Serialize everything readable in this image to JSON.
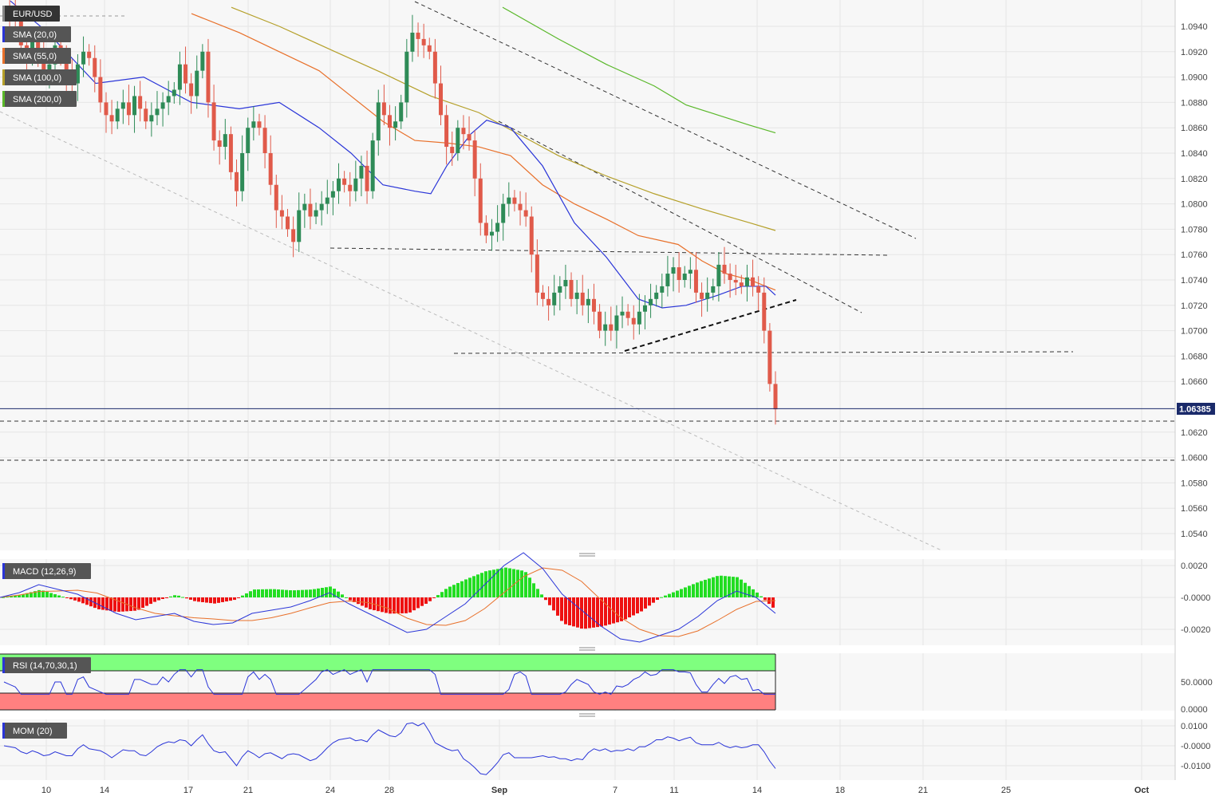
{
  "symbol": "EUR/USD",
  "last_price": 1.06385,
  "last_price_label": "1.06385",
  "colors": {
    "up": "#2e8b57",
    "down": "#e05a4a",
    "sma20": "#2a35d8",
    "sma55": "#e8702a",
    "sma100": "#b5a02a",
    "sma200": "#5ab82a",
    "macd_line": "#2a35d8",
    "signal_line": "#e8702a",
    "hist_pos": "#22dd22",
    "hist_neg": "#ee1111",
    "rsi_line": "#2a35d8",
    "rsi_overbought_zone": "#7fff7f",
    "rsi_oversold_zone": "#ff8080",
    "mom_line": "#2a35d8",
    "last_price_line": "#1a2a6a"
  },
  "indicators": {
    "sma20": "SMA (20,0)",
    "sma55": "SMA (55,0)",
    "sma100": "SMA (100,0)",
    "sma200": "SMA (200,0)",
    "macd": "MACD (12,26,9)",
    "rsi": "RSI (14,70,30,1)",
    "mom": "MOM (20)"
  },
  "chart_data": {
    "type": "candlestick",
    "title": "EUR/USD",
    "ylim": [
      1.053,
      1.096
    ],
    "price_ticks": [
      "1.0940",
      "1.0920",
      "1.0900",
      "1.0880",
      "1.0860",
      "1.0840",
      "1.0820",
      "1.0800",
      "1.0780",
      "1.0760",
      "1.0740",
      "1.0720",
      "1.0700",
      "1.0680",
      "1.0660",
      "1.0620",
      "1.0600",
      "1.0580",
      "1.0560",
      "1.0540"
    ],
    "date_ticks": [
      "10",
      "14",
      "17",
      "21",
      "24",
      "28",
      "Sep",
      "7",
      "11",
      "14",
      "18",
      "21",
      "25",
      "Oct"
    ],
    "macd_ticks": [
      "0.0020",
      "-0.0000",
      "-0.0020"
    ],
    "rsi_ticks": [
      "50.0000",
      "0.0000"
    ],
    "mom_ticks": [
      "0.0100",
      "-0.0000",
      "-0.0100"
    ],
    "closes": [
      1.0955,
      1.095,
      1.0945,
      1.0925,
      1.0915,
      1.093,
      1.092,
      1.0905,
      1.091,
      1.0925,
      1.0915,
      1.09,
      1.0895,
      1.091,
      1.092,
      1.0915,
      1.09,
      1.088,
      1.087,
      1.0865,
      1.0875,
      1.088,
      1.087,
      1.0885,
      1.0875,
      1.0865,
      1.087,
      1.0875,
      1.088,
      1.0885,
      1.089,
      1.091,
      1.0895,
      1.0885,
      1.0905,
      1.092,
      1.088,
      1.085,
      1.0845,
      1.0855,
      1.0825,
      1.081,
      1.084,
      1.086,
      1.0865,
      1.086,
      1.084,
      1.0815,
      1.0795,
      1.079,
      1.078,
      1.077,
      1.0795,
      1.08,
      1.079,
      1.0795,
      1.08,
      1.0805,
      1.081,
      1.082,
      1.0815,
      1.081,
      1.082,
      1.083,
      1.081,
      1.085,
      1.088,
      1.087,
      1.086,
      1.0865,
      1.088,
      1.092,
      1.0935,
      1.093,
      1.0925,
      1.092,
      1.0895,
      1.087,
      1.0845,
      1.084,
      1.086,
      1.0855,
      1.085,
      1.082,
      1.0785,
      1.0775,
      1.0778,
      1.0785,
      1.08,
      1.0805,
      1.08,
      1.0795,
      1.079,
      1.076,
      1.073,
      1.0725,
      1.072,
      1.073,
      1.0735,
      1.074,
      1.0725,
      1.073,
      1.072,
      1.0725,
      1.0715,
      1.07,
      1.0705,
      1.07,
      1.0712,
      1.0715,
      1.071,
      1.0705,
      1.0715,
      1.072,
      1.0725,
      1.073,
      1.0735,
      1.0745,
      1.075,
      1.074,
      1.0745,
      1.0748,
      1.073,
      1.0725,
      1.073,
      1.0735,
      1.0752,
      1.0745,
      1.074,
      1.0738,
      1.0735,
      1.0742,
      1.0735,
      1.073,
      1.07,
      1.0658,
      1.0638
    ],
    "sma20": [
      [
        13,
        1.096
      ],
      [
        60,
        1.0935
      ],
      [
        120,
        1.0895
      ],
      [
        180,
        1.09
      ],
      [
        240,
        1.088
      ],
      [
        300,
        1.0875
      ],
      [
        350,
        1.088
      ],
      [
        400,
        1.086
      ],
      [
        440,
        1.084
      ],
      [
        480,
        1.0815
      ],
      [
        520,
        1.081
      ],
      [
        540,
        1.0808
      ],
      [
        560,
        1.083
      ],
      [
        590,
        1.0855
      ],
      [
        610,
        1.0866
      ],
      [
        640,
        1.086
      ],
      [
        680,
        1.083
      ],
      [
        720,
        1.0785
      ],
      [
        760,
        1.0758
      ],
      [
        800,
        1.0725
      ],
      [
        830,
        1.0718
      ],
      [
        860,
        1.072
      ],
      [
        900,
        1.0728
      ],
      [
        930,
        1.0735
      ],
      [
        960,
        1.0735
      ],
      [
        972,
        1.0728
      ]
    ],
    "sma55": [
      [
        240,
        1.095
      ],
      [
        300,
        1.0935
      ],
      [
        350,
        1.092
      ],
      [
        400,
        1.0905
      ],
      [
        440,
        1.0885
      ],
      [
        480,
        1.0865
      ],
      [
        520,
        1.085
      ],
      [
        560,
        1.0848
      ],
      [
        600,
        1.0845
      ],
      [
        640,
        1.0838
      ],
      [
        680,
        1.0815
      ],
      [
        720,
        1.08
      ],
      [
        760,
        1.0788
      ],
      [
        800,
        1.0775
      ],
      [
        850,
        1.0768
      ],
      [
        880,
        1.0755
      ],
      [
        910,
        1.0745
      ],
      [
        940,
        1.074
      ],
      [
        972,
        1.0732
      ]
    ],
    "sma100": [
      [
        290,
        1.0955
      ],
      [
        350,
        1.094
      ],
      [
        420,
        1.092
      ],
      [
        480,
        1.0903
      ],
      [
        540,
        1.0885
      ],
      [
        600,
        1.0872
      ],
      [
        650,
        1.0855
      ],
      [
        700,
        1.0838
      ],
      [
        760,
        1.0822
      ],
      [
        820,
        1.0808
      ],
      [
        880,
        1.0796
      ],
      [
        940,
        1.0785
      ],
      [
        972,
        1.0779
      ]
    ],
    "sma200": [
      [
        630,
        1.0955
      ],
      [
        700,
        1.093
      ],
      [
        760,
        1.091
      ],
      [
        820,
        1.0893
      ],
      [
        860,
        1.0878
      ],
      [
        900,
        1.087
      ],
      [
        940,
        1.0862
      ],
      [
        972,
        1.0856
      ]
    ],
    "macd_line": [
      0.0,
      0.0003,
      0.0008,
      0.0005,
      0.0002,
      -0.0004,
      -0.001,
      -0.0014,
      -0.0012,
      -0.001,
      -0.0015,
      -0.0017,
      -0.0016,
      -0.001,
      -0.0008,
      -0.0006,
      -0.0002,
      0.0003,
      -0.0004,
      -0.001,
      -0.0016,
      -0.0022,
      -0.002,
      -0.0012,
      -0.0004,
      0.0008,
      0.002,
      0.0028,
      0.0018,
      0.0002,
      -0.0008,
      -0.0018,
      -0.0026,
      -0.0028,
      -0.0024,
      -0.002,
      -0.0012,
      -0.0002,
      0.0004,
      0.0,
      -0.001
    ]
  }
}
